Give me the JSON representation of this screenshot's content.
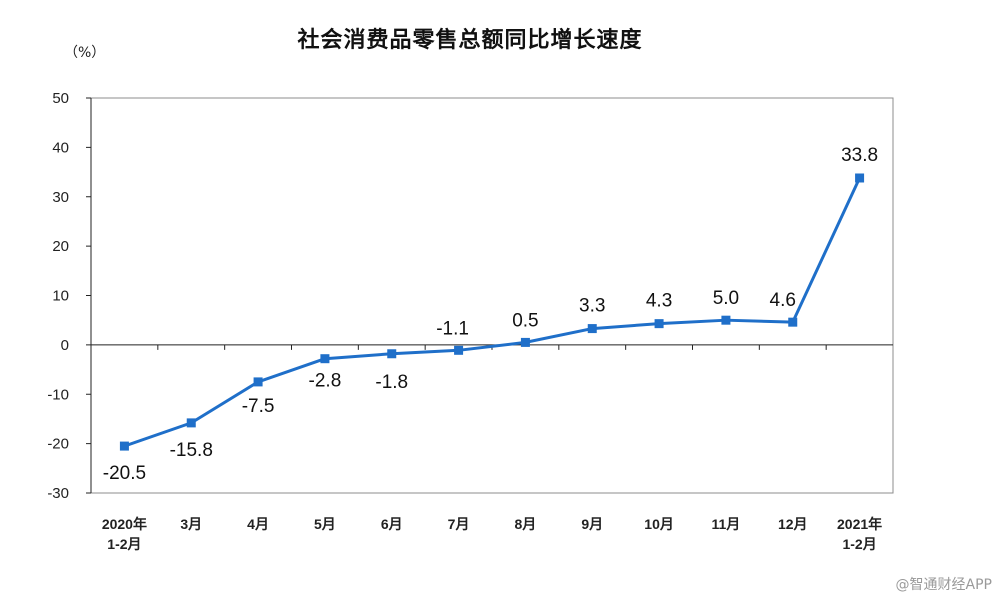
{
  "chart_data": {
    "type": "line",
    "title": "社会消费品零售总额同比增长速度",
    "unit_label": "（%）",
    "xlabel": "",
    "ylabel": "",
    "ylim": [
      -30,
      50
    ],
    "yticks": [
      "50",
      "40",
      "30",
      "20",
      "10",
      "0",
      "-10",
      "-20",
      "-30"
    ],
    "ytick_values": [
      50,
      40,
      30,
      20,
      10,
      0,
      -10,
      -20,
      -30
    ],
    "categories": [
      [
        "2020年",
        "1-2月"
      ],
      [
        "3月"
      ],
      [
        "4月"
      ],
      [
        "5月"
      ],
      [
        "6月"
      ],
      [
        "7月"
      ],
      [
        "8月"
      ],
      [
        "9月"
      ],
      [
        "10月"
      ],
      [
        "11月"
      ],
      [
        "12月"
      ],
      [
        "2021年",
        "1-2月"
      ]
    ],
    "values": [
      -20.5,
      -15.8,
      -7.5,
      -2.8,
      -1.8,
      -1.1,
      0.5,
      3.3,
      4.3,
      5.0,
      4.6,
      33.8
    ],
    "data_labels": [
      "-20.5",
      "-15.8",
      "-7.5",
      "-2.8",
      "-1.8",
      "-1.1",
      "0.5",
      "3.3",
      "4.3",
      "5.0",
      "4.6",
      "33.8"
    ],
    "series_color": "#1f6fc9",
    "grid": false,
    "legend": "none"
  },
  "watermark": "@智通财经APP"
}
